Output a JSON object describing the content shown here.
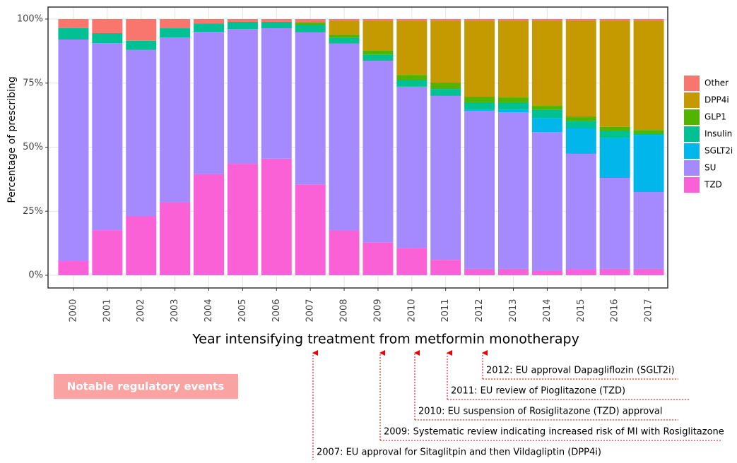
{
  "chart_data": {
    "type": "stacked_bar",
    "x_label": "Year intensifying treatment from metformin monotherapy",
    "y_label": "Percentage of prescribing",
    "categories": [
      "2000",
      "2001",
      "2002",
      "2003",
      "2004",
      "2005",
      "2006",
      "2007",
      "2008",
      "2009",
      "2010",
      "2011",
      "2012",
      "2013",
      "2014",
      "2015",
      "2016",
      "2017"
    ],
    "series": [
      {
        "name": "Other",
        "color": "#F8766D",
        "values": [
          3.5,
          5.5,
          8.5,
          3.6,
          1.7,
          1.1,
          1.1,
          1.1,
          0.6,
          0.6,
          0.6,
          0.6,
          0.6,
          0.6,
          0.6,
          0.8,
          0.6,
          0.6
        ]
      },
      {
        "name": "DPP4i",
        "color": "#C49A00",
        "values": [
          0,
          0,
          0,
          0,
          0,
          0,
          0,
          0.3,
          5.4,
          11.8,
          21.2,
          24.2,
          29.7,
          30,
          33.3,
          37.2,
          41.5,
          42.7
        ]
      },
      {
        "name": "GLP1",
        "color": "#53B400",
        "values": [
          0,
          0,
          0,
          0,
          0,
          0,
          0,
          0.8,
          1.4,
          1.6,
          1.9,
          2.5,
          2.2,
          1.9,
          1.6,
          1.9,
          1.7,
          1.6
        ]
      },
      {
        "name": "Insulin",
        "color": "#00C094",
        "values": [
          4.5,
          3.9,
          3.5,
          3.6,
          3.3,
          2.8,
          2.5,
          3,
          2.2,
          2.3,
          2.7,
          2.7,
          3,
          2.8,
          3.1,
          2.8,
          2.5,
          0.3
        ]
      },
      {
        "name": "SGLT2i",
        "color": "#00B6EB",
        "values": [
          0,
          0,
          0,
          0,
          0,
          0,
          0,
          0,
          0,
          0,
          0,
          0,
          0.3,
          1.1,
          5.5,
          9.9,
          15.7,
          22.3
        ]
      },
      {
        "name": "SU",
        "color": "#A58AFF",
        "values": [
          86.5,
          73,
          65,
          64.3,
          55.5,
          52.6,
          50.9,
          59.3,
          72.9,
          71,
          63.1,
          64,
          61.7,
          61.1,
          54.1,
          45.2,
          35.5,
          30
        ]
      },
      {
        "name": "TZD",
        "color": "#FB61D7",
        "values": [
          5.5,
          17.6,
          23,
          28.5,
          39.5,
          43.5,
          45.5,
          35.5,
          17.5,
          12.7,
          10.5,
          6,
          2.5,
          2.5,
          1.8,
          2.2,
          2.5,
          2.5
        ]
      }
    ],
    "ylim": [
      0,
      100
    ],
    "yticks": [
      {
        "value": 0,
        "label": "0%"
      },
      {
        "value": 25,
        "label": "25%"
      },
      {
        "value": 50,
        "label": "50%"
      },
      {
        "value": 75,
        "label": "75%"
      },
      {
        "value": 100,
        "label": "100%"
      }
    ],
    "grid": true,
    "legend": "right"
  },
  "annotation_box": "Notable regulatory events",
  "annotations": [
    "2012: EU approval Dapagliflozin (SGLT2i)",
    "2011: EU review of Pioglitazone (TZD)",
    "2010: EU suspension of Rosiglitazone (TZD) approval",
    "2009: Systematic review indicating increased risk of MI with Rosiglitazone",
    "2007: EU approval for Sitaglitpin and then Vildagliptin (DPP4i)"
  ]
}
